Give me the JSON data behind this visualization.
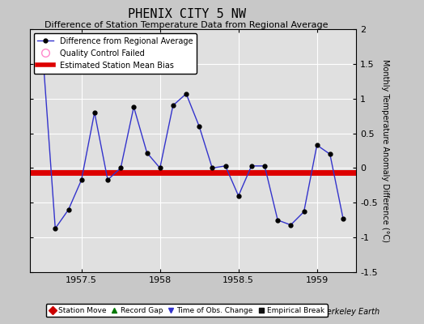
{
  "title": "PHENIX CITY 5 NW",
  "subtitle": "Difference of Station Temperature Data from Regional Average",
  "ylabel": "Monthly Temperature Anomaly Difference (°C)",
  "bias_value": -0.07,
  "xlim": [
    1957.17,
    1959.25
  ],
  "ylim": [
    -1.5,
    2.0
  ],
  "yticks": [
    -1.5,
    -1.0,
    -0.5,
    0.0,
    0.5,
    1.0,
    1.5,
    2.0
  ],
  "ytick_labels": [
    "-1.5",
    "-1",
    "-0.5",
    "0",
    "0.5",
    "1",
    "1.5",
    "2"
  ],
  "xticks": [
    1957.5,
    1958.0,
    1958.5,
    1959.0
  ],
  "xtick_labels": [
    "1957.5",
    "1958",
    "1958.5",
    "1959"
  ],
  "background_color": "#e0e0e0",
  "fig_background_color": "#c8c8c8",
  "line_color": "#3333cc",
  "bias_color": "#dd0000",
  "x_data": [
    1957.25,
    1957.333,
    1957.417,
    1957.5,
    1957.583,
    1957.667,
    1957.75,
    1957.833,
    1957.917,
    1958.0,
    1958.083,
    1958.167,
    1958.25,
    1958.333,
    1958.417,
    1958.5,
    1958.583,
    1958.667,
    1958.75,
    1958.833,
    1958.917,
    1959.0,
    1959.083,
    1959.167
  ],
  "y_data": [
    1.75,
    -0.87,
    -0.6,
    -0.17,
    0.8,
    -0.17,
    0.0,
    0.88,
    0.22,
    0.0,
    0.9,
    1.07,
    0.6,
    0.0,
    0.03,
    -0.4,
    0.03,
    0.03,
    -0.75,
    -0.82,
    -0.63,
    0.33,
    0.2,
    -0.73
  ],
  "berkeley_earth_text": "Berkeley Earth",
  "legend_items": [
    {
      "label": "Difference from Regional Average",
      "color": "#3333cc",
      "type": "line"
    },
    {
      "label": "Quality Control Failed",
      "color": "#ff88cc",
      "type": "circle"
    },
    {
      "label": "Estimated Station Mean Bias",
      "color": "#dd0000",
      "type": "line"
    }
  ],
  "bottom_legend_items": [
    {
      "label": "Station Move",
      "color": "#cc0000",
      "marker": "D"
    },
    {
      "label": "Record Gap",
      "color": "#007700",
      "marker": "^"
    },
    {
      "label": "Time of Obs. Change",
      "color": "#3333cc",
      "marker": "v"
    },
    {
      "label": "Empirical Break",
      "color": "#111111",
      "marker": "s"
    }
  ],
  "title_fontsize": 11,
  "subtitle_fontsize": 8,
  "tick_fontsize": 8,
  "ylabel_fontsize": 7
}
